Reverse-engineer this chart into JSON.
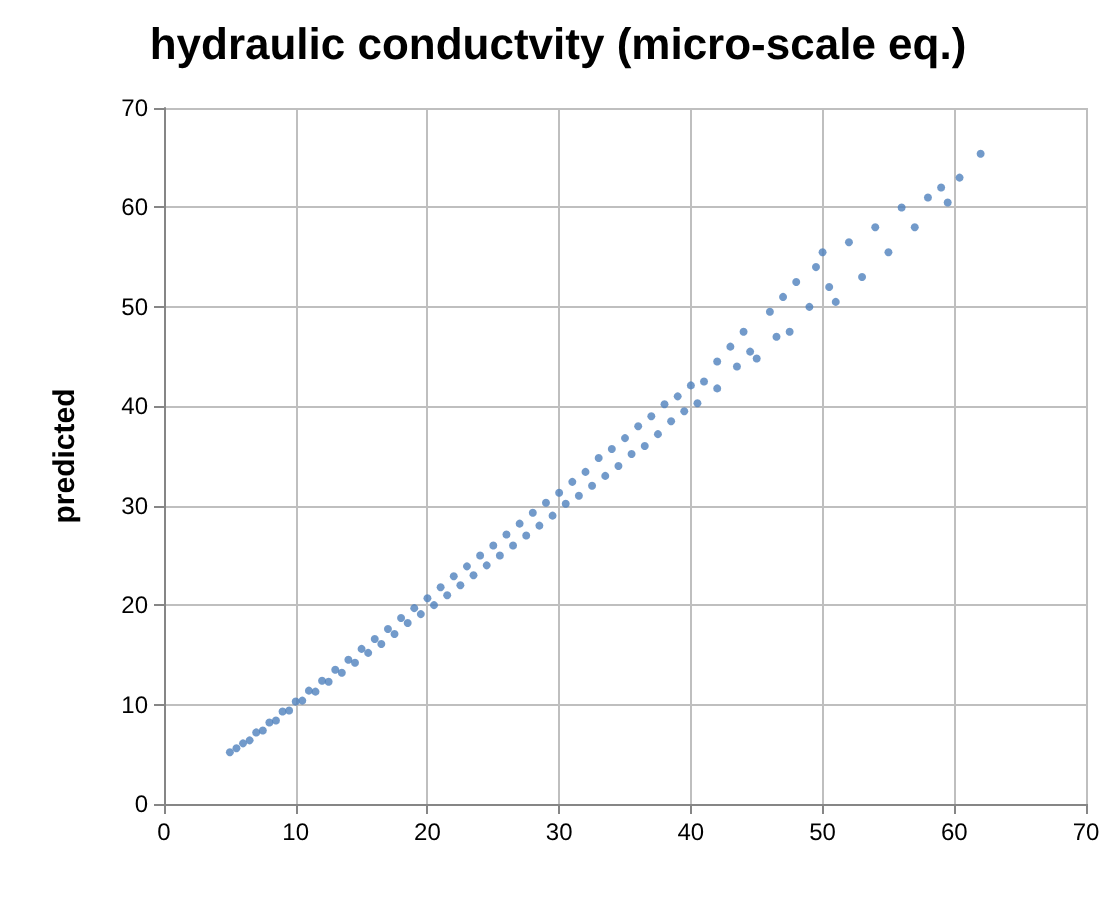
{
  "chart_data": {
    "type": "scatter",
    "title": "hydraulic conductvity (micro-scale eq.)",
    "ylabel": "predicted",
    "xlim": [
      0,
      70
    ],
    "xticks": [
      0,
      10,
      20,
      30,
      40,
      50,
      60,
      70
    ],
    "ylim": [
      0,
      70
    ],
    "yticks": [
      0,
      10,
      20,
      30,
      40,
      50,
      60,
      70
    ],
    "grid": true,
    "marker": "circle",
    "series": [
      {
        "color": "#4f81bd",
        "x": [
          5,
          5.5,
          6,
          6.5,
          7,
          7.5,
          8,
          8.5,
          9,
          9.5,
          10,
          10.5,
          11,
          11.5,
          12,
          12.5,
          13,
          13.5,
          14,
          14.5,
          15,
          15.5,
          16,
          16.5,
          17,
          17.5,
          18,
          18.5,
          19,
          19.5,
          20,
          20.5,
          21,
          21.5,
          22,
          22.5,
          23,
          23.5,
          24,
          24.5,
          25,
          25.5,
          26,
          26.5,
          27,
          27.5,
          28,
          28.5,
          29,
          29.5,
          30,
          30.5,
          31,
          31.5,
          32,
          32.5,
          33,
          33.5,
          34,
          34.5,
          35,
          35.5,
          36,
          36.5,
          37,
          37.5,
          38,
          38.5,
          39,
          39.5,
          40,
          40.5,
          41,
          42,
          42,
          43,
          43.5,
          44,
          44.5,
          45,
          46,
          46.5,
          47,
          47.5,
          48,
          49,
          49.5,
          50,
          50.5,
          51,
          52,
          53,
          54,
          55,
          56,
          57,
          58,
          59,
          59.5,
          60.4,
          62
        ],
        "values": [
          5.2,
          5.6,
          6.1,
          6.4,
          7.2,
          7.4,
          8.2,
          8.4,
          9.3,
          9.4,
          10.3,
          10.4,
          11.4,
          11.3,
          12.4,
          12.3,
          13.5,
          13.2,
          14.5,
          14.2,
          15.6,
          15.2,
          16.6,
          16.1,
          17.6,
          17.1,
          18.7,
          18.2,
          19.7,
          19.1,
          20.7,
          20,
          21.8,
          21,
          22.9,
          22,
          23.9,
          23,
          25,
          24,
          26,
          25,
          27.1,
          26,
          28.2,
          27,
          29.3,
          28,
          30.3,
          29,
          31.3,
          30.2,
          32.4,
          31,
          33.4,
          32,
          34.8,
          33,
          35.7,
          34,
          36.8,
          35.2,
          38,
          36,
          39,
          37.2,
          40.2,
          38.5,
          41,
          39.5,
          42.1,
          40.3,
          42.5,
          44.5,
          41.8,
          46,
          44,
          47.5,
          45.5,
          44.8,
          49.5,
          47,
          51,
          47.5,
          52.5,
          50,
          54,
          55.5,
          52,
          50.5,
          56.5,
          53,
          58,
          55.5,
          60,
          58,
          61,
          62,
          60.5,
          63,
          65.4
        ]
      }
    ]
  }
}
